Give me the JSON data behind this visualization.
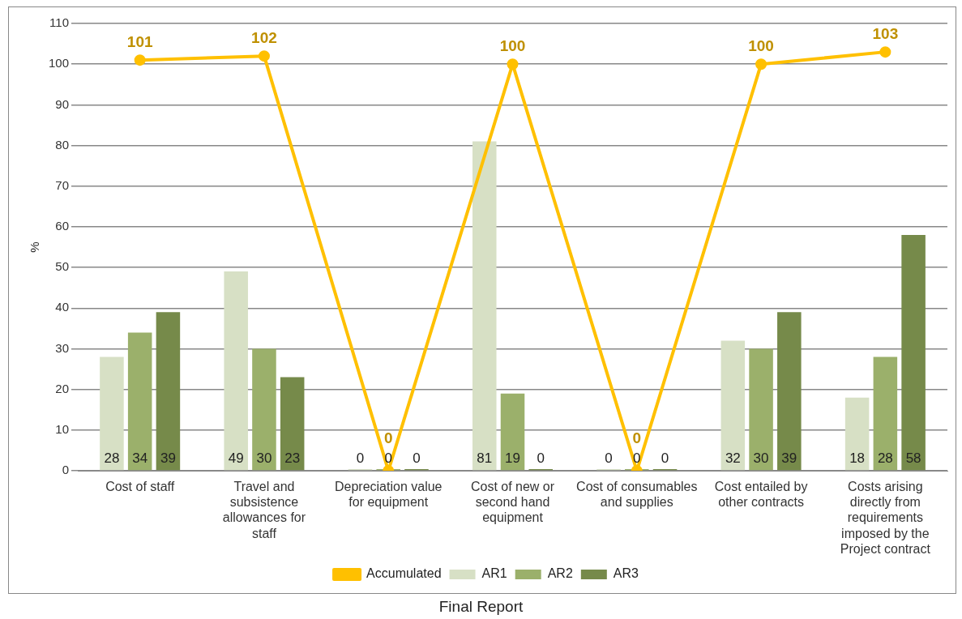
{
  "chart_data": {
    "type": "bar",
    "ylabel": "%",
    "categories": [
      "Cost of staff",
      "Travel and subsistence allowances for staff",
      "Depreciation value for equipment",
      "Cost of new or second hand equipment",
      "Cost of consumables and supplies",
      "Cost entailed by other contracts",
      "Costs arising directly from requirements imposed by the Project contract"
    ],
    "series": [
      {
        "name": "AR1",
        "color": "#d7e0c5",
        "values": [
          28,
          49,
          0,
          81,
          0,
          32,
          18
        ]
      },
      {
        "name": "AR2",
        "color": "#9bb06b",
        "values": [
          34,
          30,
          0,
          19,
          0,
          30,
          28
        ]
      },
      {
        "name": "AR3",
        "color": "#768a4a",
        "values": [
          39,
          23,
          0,
          0,
          0,
          39,
          58
        ]
      },
      {
        "name": "Accumulated",
        "type": "line",
        "color": "#ffc000",
        "values": [
          101,
          102,
          0,
          100,
          0,
          100,
          103
        ]
      }
    ],
    "ylim": [
      0,
      110
    ],
    "yticks": [
      0,
      10,
      20,
      30,
      40,
      50,
      60,
      70,
      80,
      90,
      100,
      110
    ],
    "grid": "y",
    "legend": "bottom",
    "marker": "circle",
    "line_style": "solid",
    "data_labels": true,
    "annotations": [
      "Final Report"
    ]
  }
}
